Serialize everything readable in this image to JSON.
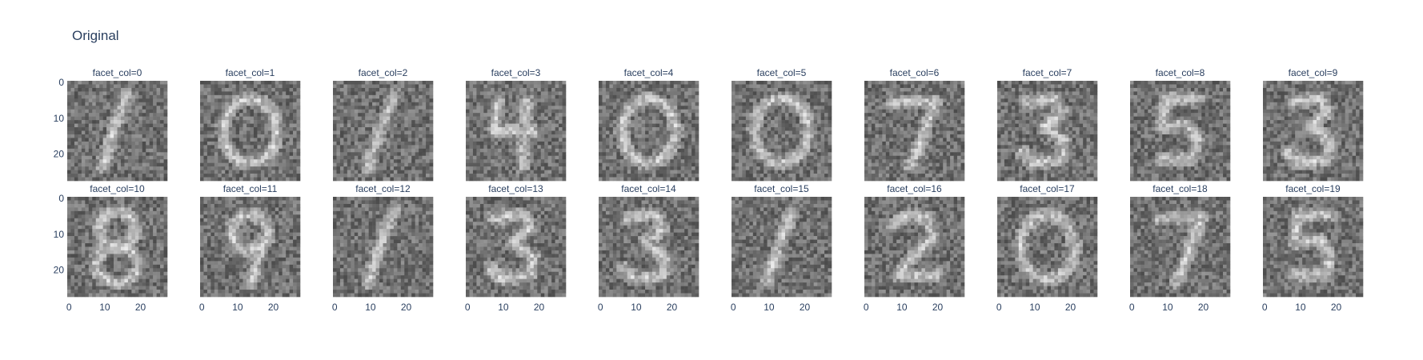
{
  "chart_data": {
    "type": "heatmap",
    "title": "Original",
    "colorscale": "gray",
    "image_size": [
      28,
      28
    ],
    "x_ticks": [
      0,
      10,
      20
    ],
    "y_ticks": [
      0,
      10,
      20
    ],
    "xlim": [
      0,
      27
    ],
    "ylim": [
      0,
      27
    ],
    "y_reversed": true,
    "x_tick_rows": "bottom",
    "y_tick_columns": "left",
    "facets": [
      {
        "label": "facet_col=0",
        "digit": "1"
      },
      {
        "label": "facet_col=1",
        "digit": "0"
      },
      {
        "label": "facet_col=2",
        "digit": "1"
      },
      {
        "label": "facet_col=3",
        "digit": "4"
      },
      {
        "label": "facet_col=4",
        "digit": "0"
      },
      {
        "label": "facet_col=5",
        "digit": "0"
      },
      {
        "label": "facet_col=6",
        "digit": "7"
      },
      {
        "label": "facet_col=7",
        "digit": "3"
      },
      {
        "label": "facet_col=8",
        "digit": "5"
      },
      {
        "label": "facet_col=9",
        "digit": "3"
      },
      {
        "label": "facet_col=10",
        "digit": "8"
      },
      {
        "label": "facet_col=11",
        "digit": "9"
      },
      {
        "label": "facet_col=12",
        "digit": "1"
      },
      {
        "label": "facet_col=13",
        "digit": "3"
      },
      {
        "label": "facet_col=14",
        "digit": "3"
      },
      {
        "label": "facet_col=15",
        "digit": "1"
      },
      {
        "label": "facet_col=16",
        "digit": "2"
      },
      {
        "label": "facet_col=17",
        "digit": "0"
      },
      {
        "label": "facet_col=18",
        "digit": "7"
      },
      {
        "label": "facet_col=19",
        "digit": "5"
      }
    ]
  }
}
